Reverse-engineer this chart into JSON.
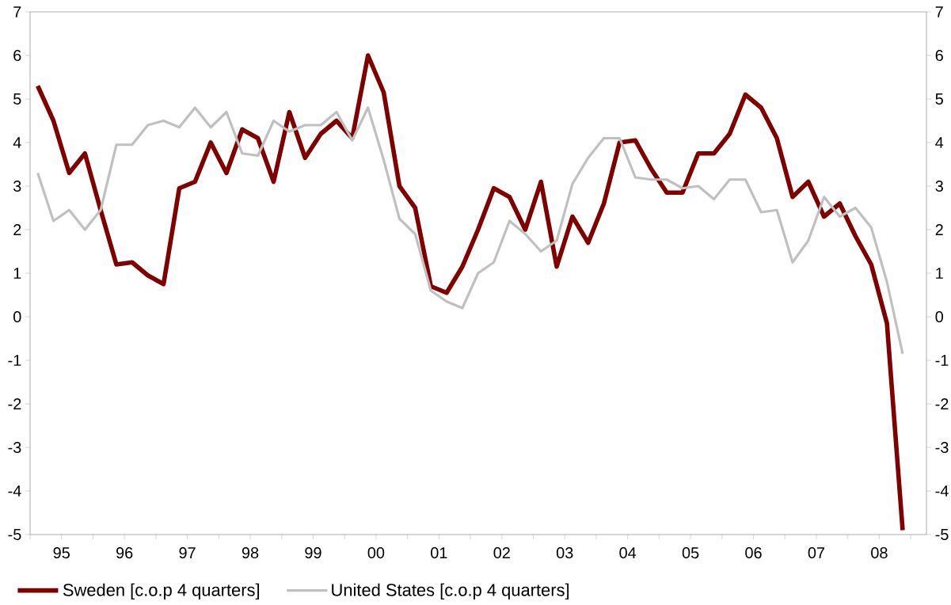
{
  "chart_data": {
    "type": "line",
    "x": [
      "1995-02-15",
      "1995-05-15",
      "1995-08-15",
      "1995-11-15",
      "1996-02-15",
      "1996-05-15",
      "1996-08-15",
      "1996-11-15",
      "1997-02-15",
      "1997-05-15",
      "1997-08-15",
      "1997-11-15",
      "1998-02-15",
      "1998-05-15",
      "1998-08-15",
      "1998-11-15",
      "1999-02-15",
      "1999-05-15",
      "1999-08-15",
      "1999-11-15",
      "2000-02-15",
      "2000-05-15",
      "2000-08-15",
      "2000-11-15",
      "2001-02-15",
      "2001-05-15",
      "2001-08-15",
      "2001-11-15",
      "2002-02-15",
      "2002-05-15",
      "2002-08-15",
      "2002-11-15",
      "2003-02-15",
      "2003-05-15",
      "2003-08-15",
      "2003-11-15",
      "2004-02-15",
      "2004-05-15",
      "2004-08-15",
      "2004-11-15",
      "2005-02-15",
      "2005-05-15",
      "2005-08-15",
      "2005-11-15",
      "2006-02-15",
      "2006-05-15",
      "2006-08-15",
      "2006-11-15",
      "2007-02-15",
      "2007-05-15",
      "2007-08-15",
      "2007-11-15",
      "2008-02-15",
      "2008-05-15",
      "2008-08-15",
      "2008-11-15"
    ],
    "series": [
      {
        "name": "Sweden [c.o.p 4 quarters]",
        "color": "#800000",
        "values": [
          5.3,
          4.5,
          3.3,
          3.75,
          2.45,
          1.2,
          1.25,
          0.95,
          0.75,
          2.95,
          3.1,
          4.0,
          3.3,
          4.3,
          4.1,
          3.1,
          4.7,
          3.65,
          4.2,
          4.5,
          4.1,
          6.0,
          5.15,
          3.0,
          2.5,
          0.7,
          0.55,
          1.15,
          2.0,
          2.95,
          2.75,
          2.0,
          3.1,
          1.15,
          2.3,
          1.7,
          2.6,
          4.0,
          4.05,
          3.4,
          2.85,
          2.85,
          3.75,
          3.75,
          4.2,
          5.1,
          4.8,
          4.1,
          2.75,
          3.1,
          2.3,
          2.6,
          1.85,
          1.2,
          -0.15,
          -4.9
        ]
      },
      {
        "name": "United States [c.o.p 4 quarters]",
        "color": "#c0c0c0",
        "values": [
          3.3,
          2.2,
          2.45,
          2.0,
          2.45,
          3.95,
          3.95,
          4.4,
          4.5,
          4.35,
          4.8,
          4.35,
          4.7,
          3.75,
          3.7,
          4.5,
          4.25,
          4.4,
          4.4,
          4.7,
          4.05,
          4.8,
          3.6,
          2.25,
          1.9,
          0.6,
          0.35,
          0.2,
          1.0,
          1.25,
          2.2,
          1.9,
          1.5,
          1.75,
          3.05,
          3.65,
          4.1,
          4.1,
          3.2,
          3.15,
          3.15,
          2.95,
          3.0,
          2.7,
          3.15,
          3.15,
          2.4,
          2.45,
          1.25,
          1.75,
          2.75,
          2.3,
          2.5,
          2.05,
          0.8,
          -0.85
        ]
      }
    ],
    "xlim": [
      "1995-01-01",
      "2009-04-01"
    ],
    "xticks": [
      {
        "value": "1995-01-01",
        "label": null
      },
      {
        "value": "1995-07-01",
        "label": "95"
      },
      {
        "value": "1996-01-01",
        "label": null
      },
      {
        "value": "1996-07-01",
        "label": "96"
      },
      {
        "value": "1997-01-01",
        "label": null
      },
      {
        "value": "1997-07-01",
        "label": "97"
      },
      {
        "value": "1998-01-01",
        "label": null
      },
      {
        "value": "1998-07-01",
        "label": "98"
      },
      {
        "value": "1999-01-01",
        "label": null
      },
      {
        "value": "1999-07-01",
        "label": "99"
      },
      {
        "value": "2000-01-01",
        "label": null
      },
      {
        "value": "2000-07-01",
        "label": "00"
      },
      {
        "value": "2001-01-01",
        "label": null
      },
      {
        "value": "2001-07-01",
        "label": "01"
      },
      {
        "value": "2002-01-01",
        "label": null
      },
      {
        "value": "2002-07-01",
        "label": "02"
      },
      {
        "value": "2003-01-01",
        "label": null
      },
      {
        "value": "2003-07-01",
        "label": "03"
      },
      {
        "value": "2004-01-01",
        "label": null
      },
      {
        "value": "2004-07-01",
        "label": "04"
      },
      {
        "value": "2005-01-01",
        "label": null
      },
      {
        "value": "2005-07-01",
        "label": "05"
      },
      {
        "value": "2006-01-01",
        "label": null
      },
      {
        "value": "2006-07-01",
        "label": "06"
      },
      {
        "value": "2007-01-01",
        "label": null
      },
      {
        "value": "2007-07-01",
        "label": "07"
      },
      {
        "value": "2008-01-01",
        "label": null
      },
      {
        "value": "2008-07-01",
        "label": "08"
      },
      {
        "value": "2009-01-01",
        "label": null
      }
    ],
    "ylim": [
      -5,
      7
    ],
    "yticks": [
      -5,
      -4,
      -3,
      -2,
      -1,
      0,
      1,
      2,
      3,
      4,
      5,
      6,
      7
    ],
    "y2lim": [
      -5,
      7
    ],
    "y2ticks": [
      -5,
      -4,
      -3,
      -2,
      -1,
      0,
      1,
      2,
      3,
      4,
      5,
      6,
      7
    ],
    "legend": "bottom",
    "marker": "none",
    "line_style": "solid"
  }
}
